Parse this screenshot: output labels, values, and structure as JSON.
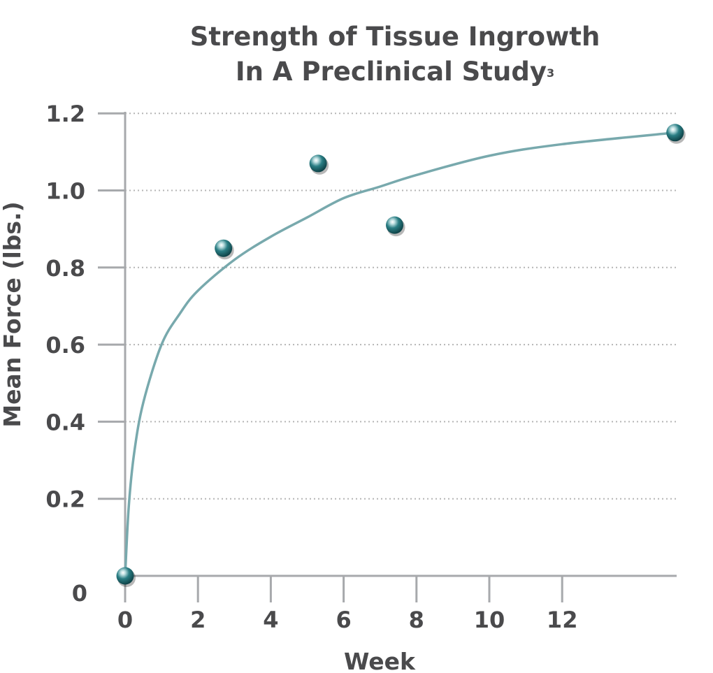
{
  "chart_data": {
    "type": "scatter",
    "title_line1": "Strength of Tissue Ingrowth",
    "title_line2": "In A Preclinical Study",
    "title_superscript": "3",
    "xlabel": "Week",
    "ylabel": "Mean Force (lbs.)",
    "x_ticks": [
      "0",
      "2",
      "4",
      "6",
      "8",
      "10",
      "12"
    ],
    "y_ticks": [
      "0",
      "0.2",
      "0.4",
      "0.6",
      "0.8",
      "1.0",
      "1.2"
    ],
    "xlim": [
      0,
      15.2
    ],
    "ylim": [
      0,
      1.2
    ],
    "grid": true,
    "points": [
      {
        "x": 0,
        "y": 0
      },
      {
        "x": 2.7,
        "y": 0.85
      },
      {
        "x": 5.3,
        "y": 1.07
      },
      {
        "x": 7.4,
        "y": 0.91
      },
      {
        "x": 15.1,
        "y": 1.15
      }
    ],
    "trend_curve": [
      {
        "x": 0,
        "y": 0
      },
      {
        "x": 0.1,
        "y": 0.18
      },
      {
        "x": 0.25,
        "y": 0.32
      },
      {
        "x": 0.5,
        "y": 0.45
      },
      {
        "x": 1,
        "y": 0.6
      },
      {
        "x": 1.5,
        "y": 0.68
      },
      {
        "x": 2,
        "y": 0.74
      },
      {
        "x": 3,
        "y": 0.82
      },
      {
        "x": 4,
        "y": 0.88
      },
      {
        "x": 5,
        "y": 0.93
      },
      {
        "x": 6,
        "y": 0.98
      },
      {
        "x": 7,
        "y": 1.01
      },
      {
        "x": 8,
        "y": 1.04
      },
      {
        "x": 10,
        "y": 1.09
      },
      {
        "x": 12,
        "y": 1.12
      },
      {
        "x": 15.1,
        "y": 1.15
      }
    ],
    "colors": {
      "curve": "#78a9ad",
      "point": "#2a7e84",
      "axis": "#a7a9ac",
      "grid": "#b5b5b5",
      "text": "#4a4a4c"
    }
  }
}
